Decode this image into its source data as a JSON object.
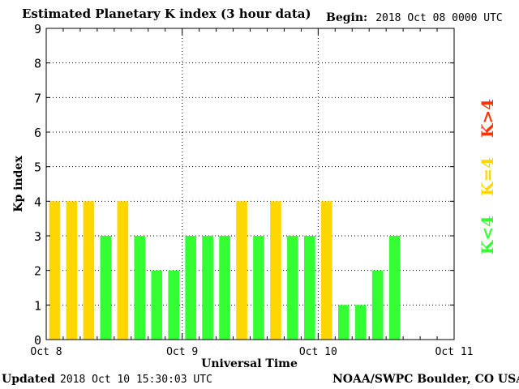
{
  "header": {
    "title": "Estimated Planetary K index (3 hour data)",
    "begin_label": "Begin:",
    "begin_value": "2018 Oct 08 0000 UTC"
  },
  "footer": {
    "updated_label": "Updated",
    "updated_value": "2018 Oct 10 15:30:03 UTC",
    "credit": "NOAA/SWPC Boulder, CO USA"
  },
  "legend": {
    "items": [
      {
        "label": "K<4",
        "color": "#33ff33"
      },
      {
        "label": "K=4",
        "color": "#ffd700"
      },
      {
        "label": "K>4",
        "color": "#ff3300"
      }
    ]
  },
  "chart_data": {
    "type": "bar",
    "xlabel": "Universal Time",
    "ylabel": "Kp index",
    "ylim": [
      0,
      9
    ],
    "yticks": [
      0,
      1,
      2,
      3,
      4,
      5,
      6,
      7,
      8,
      9
    ],
    "xticks": [
      "Oct 8",
      "Oct 9",
      "Oct 10",
      "Oct 11"
    ],
    "grid": "dotted",
    "bins_per_day": 8,
    "values": [
      4,
      4,
      4,
      3,
      4,
      3,
      2,
      2,
      3,
      3,
      3,
      4,
      3,
      4,
      3,
      3,
      4,
      1,
      1,
      2,
      3
    ],
    "colors": {
      "below": "#33ff33",
      "equal": "#ffd700",
      "above": "#ff3300"
    }
  }
}
